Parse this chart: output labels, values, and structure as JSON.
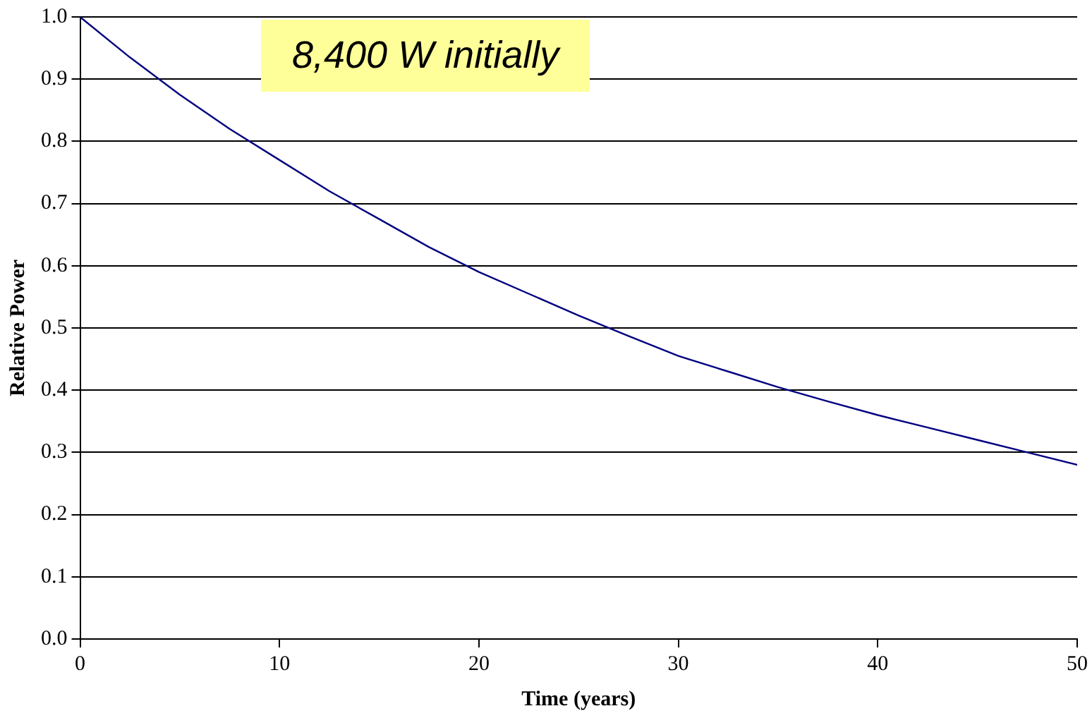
{
  "chart_data": {
    "type": "line",
    "xlabel": "Time (years)",
    "ylabel": "Relative Power",
    "annotations": [
      "8,400 W initially"
    ],
    "x": [
      0,
      2.5,
      5,
      7.5,
      10,
      12.5,
      15,
      17.5,
      20,
      22.5,
      25,
      27.5,
      30,
      32.5,
      35,
      37.5,
      40,
      42.5,
      45,
      47.5,
      50
    ],
    "series": [
      {
        "color": "#000080",
        "values": [
          1.0,
          0.935,
          0.875,
          0.82,
          0.77,
          0.72,
          0.675,
          0.63,
          0.59,
          0.555,
          0.52,
          0.487,
          0.455,
          0.43,
          0.405,
          0.382,
          0.36,
          0.34,
          0.32,
          0.3,
          0.28
        ]
      }
    ],
    "xlim": [
      0,
      50
    ],
    "xticks": [
      0,
      10,
      20,
      30,
      40,
      50
    ],
    "ylim": [
      0,
      1
    ],
    "yticks": [
      {
        "value": 0,
        "label": "0.0"
      },
      {
        "value": 0.1,
        "label": "0.1"
      },
      {
        "value": 0.2,
        "label": "0.2"
      },
      {
        "value": 0.3,
        "label": "0.3"
      },
      {
        "value": 0.4,
        "label": "0.4"
      },
      {
        "value": 0.5,
        "label": "0.5"
      },
      {
        "value": 0.6,
        "label": "0.6"
      },
      {
        "value": 0.7,
        "label": "0.7"
      },
      {
        "value": 0.8,
        "label": "0.8"
      },
      {
        "value": 0.9,
        "label": "0.9"
      },
      {
        "value": 1,
        "label": "1.0"
      }
    ],
    "grid": "y",
    "legend": false,
    "marker": "none",
    "line_style": "solid"
  }
}
